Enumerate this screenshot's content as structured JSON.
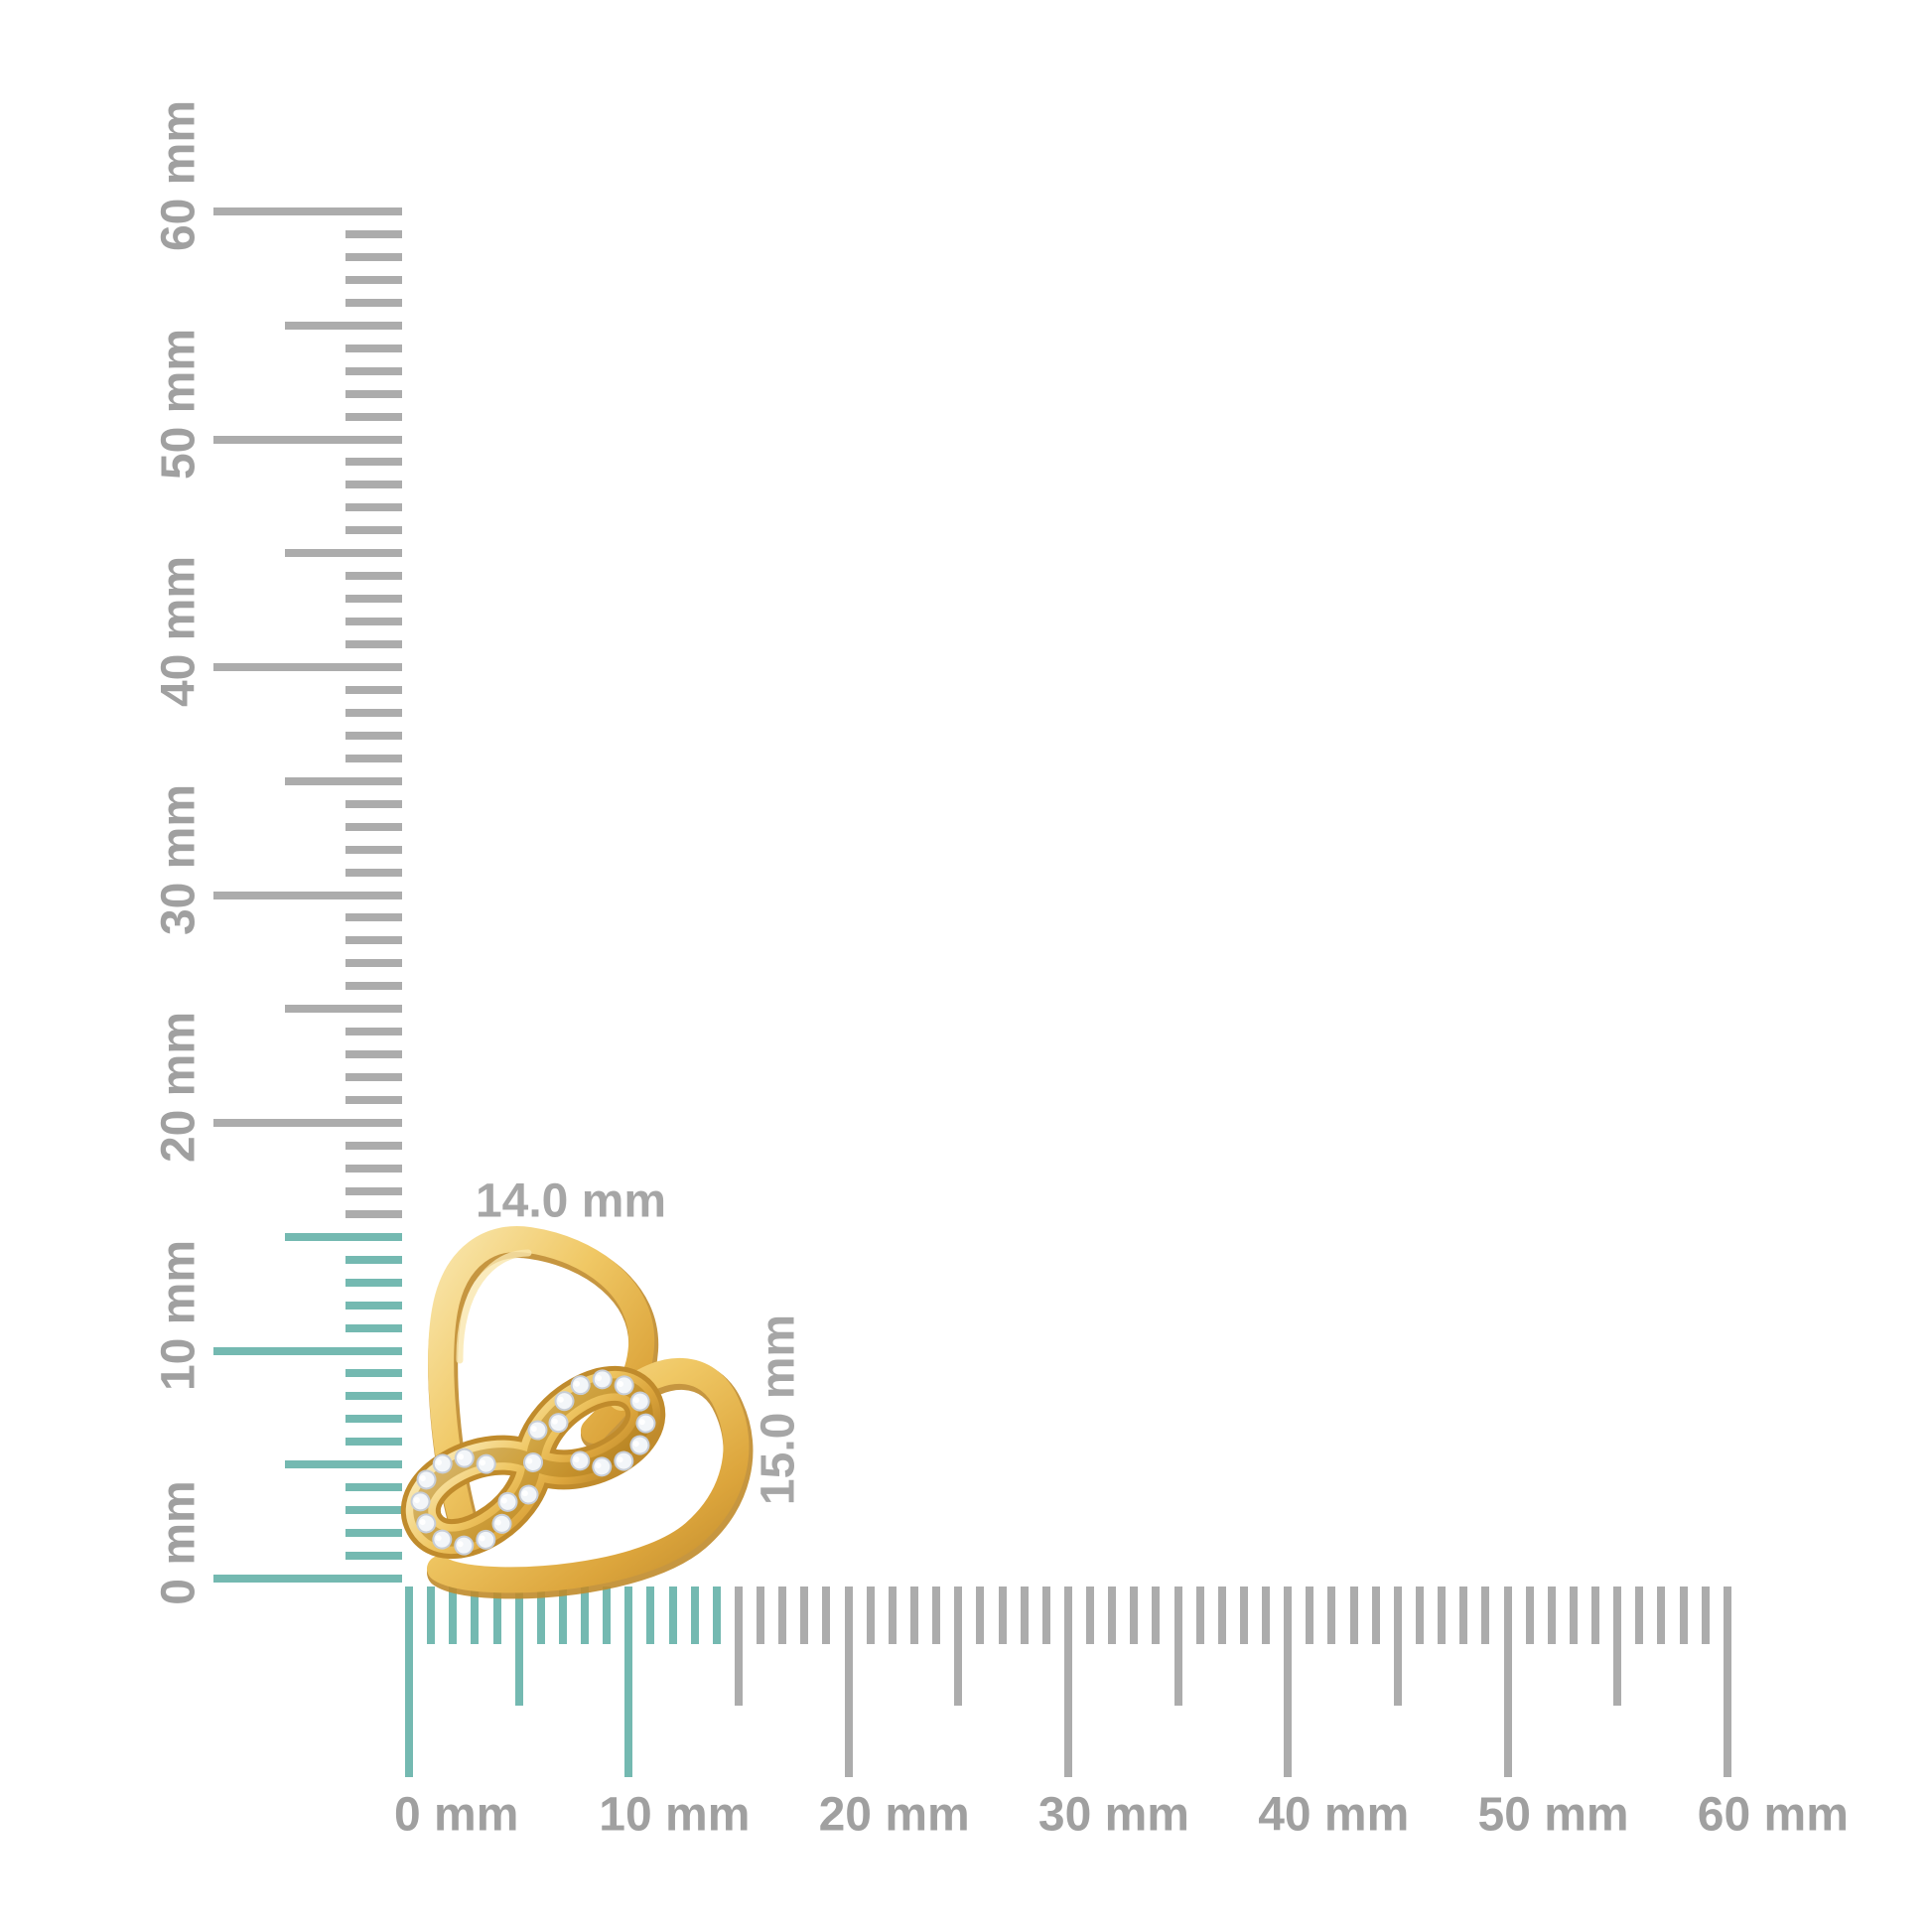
{
  "dimension_labels": {
    "width": "14.0 mm",
    "height": "15.0 mm"
  },
  "vertical_ruler": {
    "unit": "mm",
    "min_mm": 0,
    "max_mm": 60,
    "major_step_mm": 10,
    "highlight_until_mm": 15,
    "major_labels": [
      "0 mm",
      "10 mm",
      "20 mm",
      "30 mm",
      "40 mm",
      "50 mm",
      "60 mm"
    ]
  },
  "horizontal_ruler": {
    "unit": "mm",
    "min_mm": 0,
    "max_mm": 60,
    "major_step_mm": 10,
    "highlight_until_mm": 14,
    "major_labels": [
      "0 mm",
      "10 mm",
      "20 mm",
      "30 mm",
      "40 mm",
      "50 mm",
      "60 mm"
    ]
  },
  "colors": {
    "background": "#FFFFFF",
    "highlight_teal": "#74B9B1",
    "tick_gray": "#ACACAC",
    "label_gray": "#A0A0A0",
    "dim_label_gray": "#A6A6A6",
    "gold_light": "#F9E6AC",
    "gold_mid": "#F0C865",
    "gold_dark": "#DCA53C",
    "gold_deep": "#C08B2C",
    "gold_channel": "#A97719",
    "diamond_fill": "#F3F6F9",
    "diamond_edge": "#C7CDD6",
    "diamond_sparkle": "#FFFFFF"
  }
}
